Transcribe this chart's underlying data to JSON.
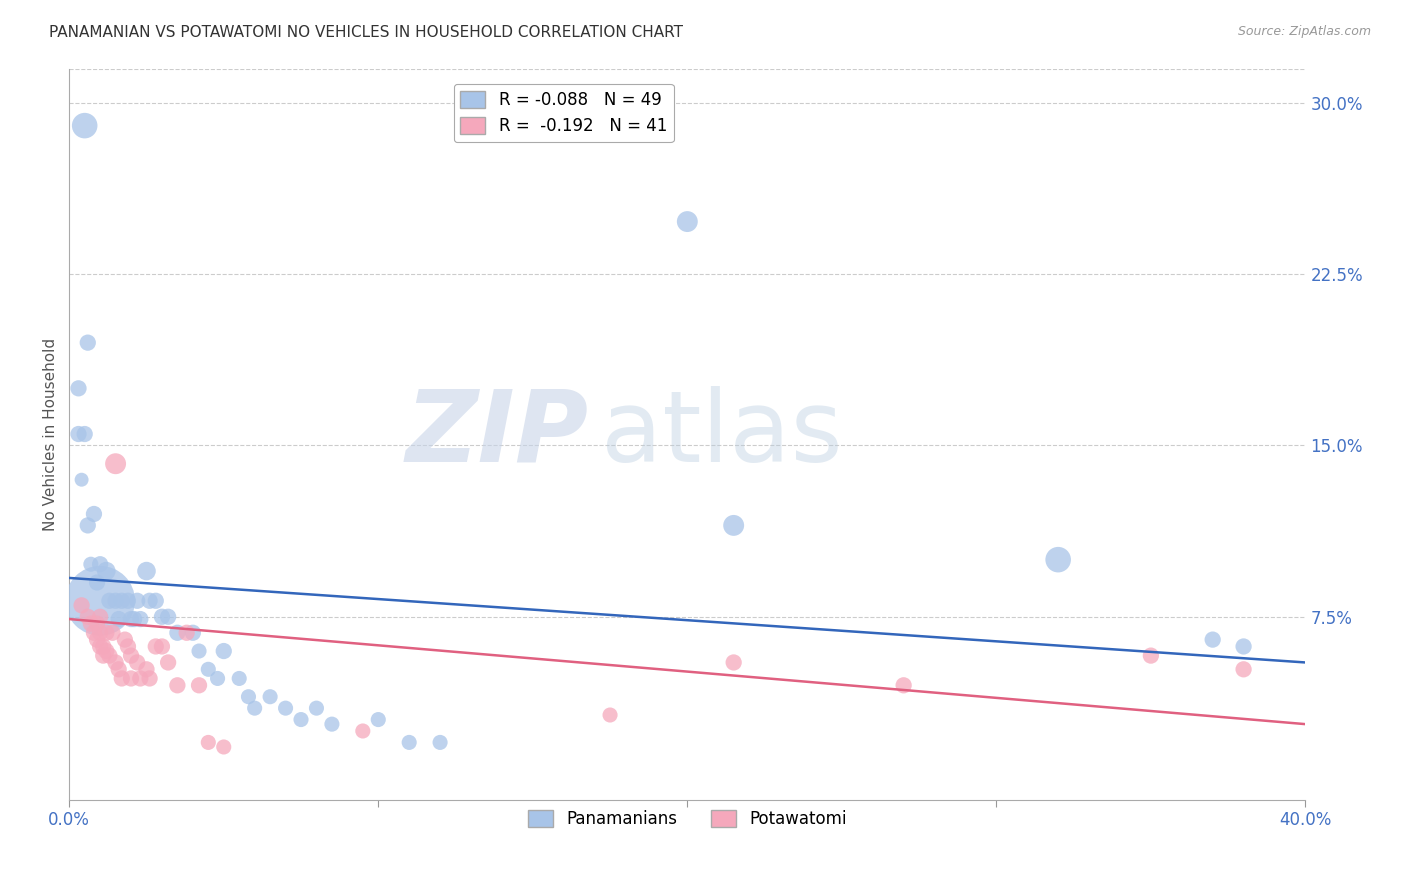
{
  "title": "PANAMANIAN VS POTAWATOMI NO VEHICLES IN HOUSEHOLD CORRELATION CHART",
  "source": "Source: ZipAtlas.com",
  "ylabel": "No Vehicles in Household",
  "blue_label": "Panamanians",
  "pink_label": "Potawatomi",
  "blue_R": -0.088,
  "blue_N": 49,
  "pink_R": -0.192,
  "pink_N": 41,
  "blue_color": "#a8c4e8",
  "pink_color": "#f5a8bc",
  "blue_line_color": "#3366bb",
  "pink_line_color": "#e06080",
  "watermark_zip": "ZIP",
  "watermark_atlas": "atlas",
  "xmin": 0.0,
  "xmax": 0.4,
  "ymin": -0.005,
  "ymax": 0.315,
  "ytick_vals": [
    0.0,
    0.075,
    0.15,
    0.225,
    0.3
  ],
  "ytick_labels": [
    "",
    "7.5%",
    "15.0%",
    "22.5%",
    "30.0%"
  ],
  "blue_line_start_y": 0.092,
  "blue_line_end_y": 0.055,
  "pink_line_start_y": 0.074,
  "pink_line_end_y": 0.028,
  "blue_points": [
    [
      0.005,
      0.29,
      22
    ],
    [
      0.003,
      0.175,
      14
    ],
    [
      0.006,
      0.195,
      14
    ],
    [
      0.003,
      0.155,
      14
    ],
    [
      0.004,
      0.135,
      12
    ],
    [
      0.006,
      0.115,
      14
    ],
    [
      0.005,
      0.155,
      14
    ],
    [
      0.007,
      0.098,
      13
    ],
    [
      0.008,
      0.12,
      14
    ],
    [
      0.009,
      0.09,
      14
    ],
    [
      0.01,
      0.098,
      14
    ],
    [
      0.01,
      0.082,
      60
    ],
    [
      0.012,
      0.095,
      16
    ],
    [
      0.013,
      0.082,
      14
    ],
    [
      0.015,
      0.082,
      14
    ],
    [
      0.016,
      0.074,
      14
    ],
    [
      0.017,
      0.082,
      14
    ],
    [
      0.019,
      0.082,
      14
    ],
    [
      0.02,
      0.074,
      14
    ],
    [
      0.021,
      0.074,
      14
    ],
    [
      0.022,
      0.082,
      14
    ],
    [
      0.023,
      0.074,
      14
    ],
    [
      0.025,
      0.095,
      16
    ],
    [
      0.026,
      0.082,
      14
    ],
    [
      0.028,
      0.082,
      14
    ],
    [
      0.03,
      0.075,
      14
    ],
    [
      0.032,
      0.075,
      14
    ],
    [
      0.035,
      0.068,
      14
    ],
    [
      0.04,
      0.068,
      14
    ],
    [
      0.042,
      0.06,
      13
    ],
    [
      0.045,
      0.052,
      13
    ],
    [
      0.048,
      0.048,
      13
    ],
    [
      0.05,
      0.06,
      14
    ],
    [
      0.055,
      0.048,
      13
    ],
    [
      0.058,
      0.04,
      13
    ],
    [
      0.06,
      0.035,
      13
    ],
    [
      0.065,
      0.04,
      13
    ],
    [
      0.07,
      0.035,
      13
    ],
    [
      0.075,
      0.03,
      13
    ],
    [
      0.08,
      0.035,
      13
    ],
    [
      0.085,
      0.028,
      13
    ],
    [
      0.1,
      0.03,
      13
    ],
    [
      0.11,
      0.02,
      13
    ],
    [
      0.12,
      0.02,
      13
    ],
    [
      0.2,
      0.248,
      18
    ],
    [
      0.215,
      0.115,
      18
    ],
    [
      0.32,
      0.1,
      22
    ],
    [
      0.37,
      0.065,
      14
    ],
    [
      0.38,
      0.062,
      14
    ]
  ],
  "pink_points": [
    [
      0.004,
      0.08,
      14
    ],
    [
      0.006,
      0.075,
      14
    ],
    [
      0.007,
      0.072,
      14
    ],
    [
      0.008,
      0.068,
      14
    ],
    [
      0.009,
      0.072,
      14
    ],
    [
      0.009,
      0.065,
      14
    ],
    [
      0.01,
      0.075,
      14
    ],
    [
      0.01,
      0.068,
      14
    ],
    [
      0.01,
      0.062,
      14
    ],
    [
      0.011,
      0.062,
      14
    ],
    [
      0.011,
      0.058,
      14
    ],
    [
      0.012,
      0.068,
      14
    ],
    [
      0.012,
      0.06,
      14
    ],
    [
      0.013,
      0.058,
      14
    ],
    [
      0.014,
      0.068,
      14
    ],
    [
      0.015,
      0.142,
      18
    ],
    [
      0.015,
      0.055,
      14
    ],
    [
      0.016,
      0.052,
      14
    ],
    [
      0.017,
      0.048,
      14
    ],
    [
      0.018,
      0.065,
      14
    ],
    [
      0.019,
      0.062,
      14
    ],
    [
      0.02,
      0.058,
      14
    ],
    [
      0.02,
      0.048,
      14
    ],
    [
      0.022,
      0.055,
      14
    ],
    [
      0.023,
      0.048,
      14
    ],
    [
      0.025,
      0.052,
      14
    ],
    [
      0.026,
      0.048,
      14
    ],
    [
      0.028,
      0.062,
      14
    ],
    [
      0.03,
      0.062,
      14
    ],
    [
      0.032,
      0.055,
      14
    ],
    [
      0.035,
      0.045,
      14
    ],
    [
      0.038,
      0.068,
      14
    ],
    [
      0.042,
      0.045,
      14
    ],
    [
      0.045,
      0.02,
      13
    ],
    [
      0.05,
      0.018,
      13
    ],
    [
      0.095,
      0.025,
      13
    ],
    [
      0.175,
      0.032,
      13
    ],
    [
      0.215,
      0.055,
      14
    ],
    [
      0.27,
      0.045,
      14
    ],
    [
      0.35,
      0.058,
      14
    ],
    [
      0.38,
      0.052,
      14
    ]
  ]
}
